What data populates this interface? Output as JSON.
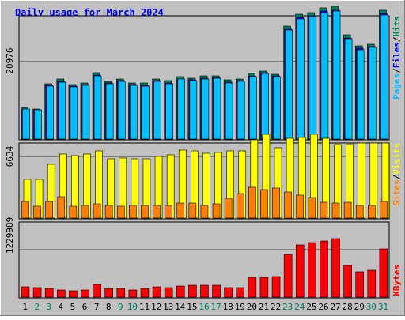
{
  "chart_data": [
    {
      "type": "bar",
      "title": "Daily usage for March 2024",
      "categories": [
        "1",
        "2",
        "3",
        "4",
        "5",
        "6",
        "7",
        "8",
        "9",
        "10",
        "11",
        "12",
        "13",
        "14",
        "15",
        "16",
        "17",
        "18",
        "19",
        "20",
        "21",
        "22",
        "23",
        "24",
        "25",
        "26",
        "27",
        "28",
        "29",
        "30",
        "31"
      ],
      "weekend_days": [
        "2",
        "3",
        "9",
        "10",
        "16",
        "17",
        "23",
        "24",
        "30",
        "31"
      ],
      "ytick": "20976",
      "ylabel_parts": [
        "Pages",
        "/",
        "Files",
        "/",
        "Hits"
      ],
      "series": [
        {
          "name": "Hits",
          "color": "#00805c",
          "values": [
            8390,
            8030,
            14870,
            16030,
            14540,
            15110,
            17790,
            15510,
            16200,
            15100,
            14940,
            16200,
            15600,
            16700,
            16400,
            16900,
            17000,
            15800,
            16100,
            17500,
            18200,
            17400,
            30300,
            33400,
            34000,
            35200,
            35500,
            28000,
            25000,
            25500,
            34500
          ]
        },
        {
          "name": "Files",
          "color": "#0000ff",
          "values": [
            8100,
            7800,
            14400,
            15500,
            14100,
            14600,
            17200,
            15000,
            15700,
            14600,
            14500,
            15700,
            15100,
            16200,
            15900,
            16400,
            16500,
            15300,
            15600,
            17000,
            17700,
            16900,
            29500,
            32600,
            33100,
            34300,
            34600,
            27200,
            24300,
            24800,
            33600
          ]
        },
        {
          "name": "Pages",
          "color": "#00c0ff",
          "values": [
            8000,
            7800,
            14200,
            15300,
            13900,
            14400,
            17000,
            14800,
            15500,
            14400,
            14300,
            15500,
            14900,
            16000,
            15700,
            16200,
            16300,
            15100,
            15400,
            16800,
            17500,
            16700,
            29200,
            32300,
            32800,
            34000,
            34300,
            26900,
            24000,
            24500,
            33300
          ]
        }
      ]
    },
    {
      "type": "bar",
      "categories": [
        "1",
        "2",
        "3",
        "4",
        "5",
        "6",
        "7",
        "8",
        "9",
        "10",
        "11",
        "12",
        "13",
        "14",
        "15",
        "16",
        "17",
        "18",
        "19",
        "20",
        "21",
        "22",
        "23",
        "24",
        "25",
        "26",
        "27",
        "28",
        "29",
        "30",
        "31"
      ],
      "ytick": "6634",
      "ylabel_parts": [
        "Sites",
        "/",
        "Visits"
      ],
      "series": [
        {
          "name": "Visits",
          "color": "#ffff00",
          "values": [
            4200,
            4200,
            5800,
            6900,
            6700,
            6900,
            7200,
            6400,
            6500,
            6400,
            6400,
            6600,
            6800,
            7300,
            7200,
            7000,
            7100,
            7200,
            7200,
            8400,
            9000,
            7600,
            8600,
            8700,
            9000,
            8600,
            7900,
            7900,
            8100,
            8100,
            8100
          ]
        },
        {
          "name": "Sites",
          "color": "#ff8000",
          "values": [
            1800,
            1300,
            1800,
            2300,
            1300,
            1400,
            1500,
            1400,
            1300,
            1400,
            1400,
            1400,
            1400,
            1600,
            1600,
            1400,
            1500,
            2100,
            2600,
            3300,
            3100,
            3200,
            2800,
            2500,
            2200,
            1700,
            1600,
            1700,
            1400,
            1400,
            1800
          ]
        }
      ]
    },
    {
      "type": "bar",
      "categories": [
        "1",
        "2",
        "3",
        "4",
        "5",
        "6",
        "7",
        "8",
        "9",
        "10",
        "11",
        "12",
        "13",
        "14",
        "15",
        "16",
        "17",
        "18",
        "19",
        "20",
        "21",
        "22",
        "23",
        "24",
        "25",
        "26",
        "27",
        "28",
        "29",
        "30",
        "31"
      ],
      "ytick": "1229989",
      "ylabel_parts": [
        "KBytes"
      ],
      "series": [
        {
          "name": "KBytes",
          "color": "#ff0000",
          "values": [
            253000,
            238000,
            218000,
            189000,
            162000,
            183000,
            328000,
            228000,
            228000,
            186000,
            228000,
            255000,
            245000,
            289000,
            295000,
            310000,
            305000,
            249000,
            245000,
            510000,
            499000,
            532000,
            1080000,
            1330000,
            1390000,
            1440000,
            1490000,
            800000,
            640000,
            676000,
            1230000
          ]
        }
      ]
    }
  ],
  "colors": {
    "title": "#0000ff",
    "plot_bg": "#c0c0c0",
    "grid": "#808080",
    "weekday_label": "#000000",
    "weekend_label": "#00805c",
    "axis_hits": "#00805c",
    "axis_files": "#0000ff",
    "axis_pages": "#00c0ff",
    "axis_visits": "#ffff00",
    "axis_sites": "#ff8000",
    "axis_kbytes": "#ff0000"
  }
}
